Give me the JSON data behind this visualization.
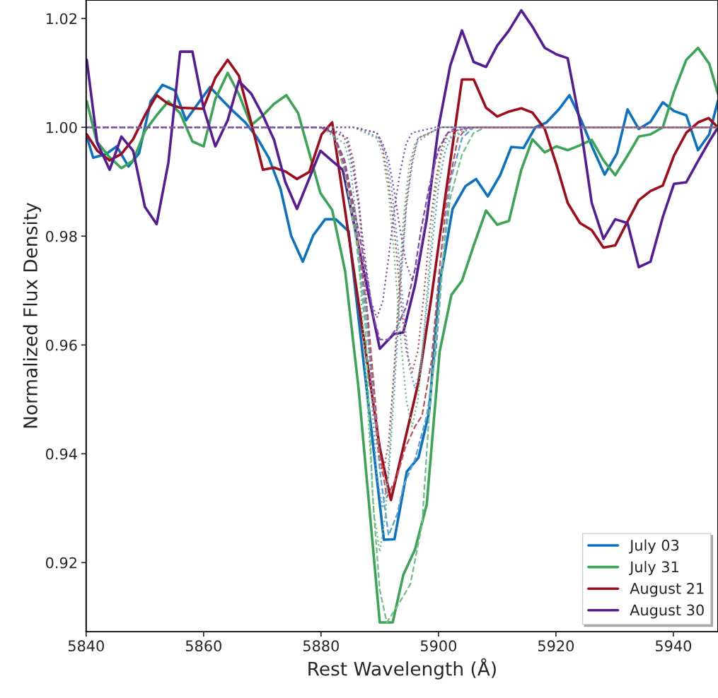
{
  "chart_data": {
    "type": "line",
    "xlabel": "Rest Wavelength (Å)",
    "ylabel": "Normalized Flux Density",
    "xlim": [
      5840,
      5947.6
    ],
    "ylim": [
      0.9073,
      1.0234
    ],
    "xticks": [
      5840,
      5860,
      5880,
      5900,
      5920,
      5940
    ],
    "yticks": [
      {
        "value": 0.92,
        "label": "0.92"
      },
      {
        "value": 0.94,
        "label": "0.94"
      },
      {
        "value": 0.96,
        "label": "0.96"
      },
      {
        "value": 0.98,
        "label": "0.98"
      },
      {
        "value": 1.0,
        "label": "1.00"
      },
      {
        "value": 1.02,
        "label": "1.02"
      }
    ],
    "grid": false,
    "legend": "bottom right",
    "series": [
      {
        "name": "July 03",
        "color": "#0a72c0",
        "line_style": "solid",
        "x": [
          5840.1,
          5841.2,
          5843.4,
          5845.2,
          5847.2,
          5849.0,
          5851.0,
          5853.0,
          5855.1,
          5857.0,
          5859.0,
          5861.1,
          5863.0,
          5865.1,
          5867.1,
          5869.0,
          5871.1,
          5873.1,
          5874.9,
          5876.9,
          5878.7,
          5880.7,
          5882.5,
          5884.7,
          5890.7,
          5892.5,
          5894.6,
          5896.6,
          5898.4,
          5900.2,
          5902.4,
          5904.6,
          5906.4,
          5908.4,
          5910.5,
          5912.4,
          5914.5,
          5916.5,
          5918.4,
          5920.5,
          5922.3,
          5924.3,
          5926.3,
          5928.3,
          5930.4,
          5932.2,
          5934.1,
          5936.1,
          5938.2,
          5940.1,
          5942.2,
          5944.2,
          5946.1,
          5947.6
        ],
        "values": [
          0.9983,
          0.9944,
          0.9951,
          0.9965,
          0.9928,
          0.9952,
          1.0048,
          1.0078,
          1.0068,
          1.0013,
          1.0043,
          1.0074,
          1.0052,
          1.0029,
          1.0009,
          0.9983,
          0.9944,
          0.9887,
          0.9801,
          0.9753,
          0.9802,
          0.9831,
          0.9831,
          0.9809,
          0.9242,
          0.9243,
          0.9367,
          0.9393,
          0.9476,
          0.9714,
          0.985,
          0.9892,
          0.9905,
          0.9873,
          0.9912,
          0.9964,
          0.9962,
          1.0,
          1.0009,
          1.0033,
          1.0059,
          1.0013,
          0.9961,
          0.9913,
          0.9952,
          1.0033,
          0.9997,
          1.001,
          1.0046,
          1.003,
          1.0022,
          0.9958,
          0.9987,
          1.0049
        ]
      },
      {
        "name": "July 31",
        "color": "#3aa655",
        "line_style": "solid",
        "x": [
          5840.1,
          5841.8,
          5844.0,
          5846.0,
          5848.0,
          5850.0,
          5852.0,
          5854.0,
          5856.0,
          5858.1,
          5860.0,
          5862.0,
          5864.1,
          5866.0,
          5868.1,
          5870.1,
          5872.0,
          5874.1,
          5876.1,
          5879.9,
          5881.9,
          5884.1,
          5886.4,
          5890.0,
          5892.2,
          5894.0,
          5896.0,
          5898.0,
          5900.2,
          5902.2,
          5904.0,
          5906.0,
          5908.1,
          5910.0,
          5912.0,
          5914.1,
          5916.0,
          5918.1,
          5920.1,
          5922.0,
          5924.1,
          5926.1,
          5928.1,
          5930.1,
          5932.2,
          5934.1,
          5936.1,
          5938.2,
          5940.1,
          5942.2,
          5944.2,
          5946.1,
          5947.6
        ],
        "values": [
          1.0048,
          0.9974,
          0.9945,
          0.9925,
          0.9939,
          0.9993,
          1.0022,
          1.0048,
          1.0026,
          0.9974,
          0.9965,
          1.0052,
          1.01,
          1.0061,
          1.0004,
          1.0022,
          1.0043,
          1.0059,
          1.0026,
          0.9879,
          0.9848,
          0.9736,
          0.9519,
          0.909,
          0.909,
          0.9177,
          0.9224,
          0.9307,
          0.9588,
          0.9692,
          0.9718,
          0.9783,
          0.9847,
          0.9821,
          0.9828,
          0.9922,
          0.9978,
          0.9954,
          0.9965,
          0.9958,
          0.9967,
          0.9977,
          0.9939,
          0.9912,
          0.9948,
          0.9983,
          0.9987,
          1.0,
          1.0065,
          1.0124,
          1.0146,
          1.0117,
          1.0061
        ]
      },
      {
        "name": "August 21",
        "color": "#a00c1c",
        "line_style": "solid",
        "x": [
          5840.1,
          5841.9,
          5844.0,
          5846.0,
          5848.0,
          5850.0,
          5852.0,
          5854.0,
          5856.0,
          5858.1,
          5859.9,
          5862.0,
          5864.1,
          5866.0,
          5868.1,
          5870.1,
          5872.0,
          5873.9,
          5875.9,
          5878.0,
          5880.1,
          5881.9,
          5890.0,
          5891.9,
          5896.6,
          5898.8,
          5901.3,
          5904.0,
          5906.0,
          5908.1,
          5910.0,
          5912.0,
          5914.1,
          5916.0,
          5918.1,
          5920.1,
          5922.0,
          5924.1,
          5926.1,
          5928.1,
          5930.1,
          5932.2,
          5934.1,
          5936.1,
          5938.2,
          5940.1,
          5942.2,
          5944.2,
          5946.0,
          5947.3
        ],
        "values": [
          0.9987,
          0.9957,
          0.9939,
          0.9951,
          0.9978,
          1.0022,
          1.0059,
          1.0043,
          1.0036,
          1.0035,
          1.0034,
          1.0091,
          1.0124,
          1.0095,
          1.0009,
          0.9922,
          0.9926,
          0.9919,
          0.9905,
          0.9918,
          0.9987,
          1.0009,
          0.9411,
          0.9315,
          0.9532,
          0.9688,
          0.9883,
          1.0088,
          1.0088,
          1.0036,
          1.002,
          1.0029,
          1.0035,
          1.0027,
          0.9997,
          0.9931,
          0.9861,
          0.9824,
          0.9811,
          0.9779,
          0.9783,
          0.9827,
          0.9866,
          0.9883,
          0.9893,
          0.9948,
          0.999,
          1.0009,
          1.0017,
          1.0003
        ]
      },
      {
        "name": "August 30",
        "color": "#561c98",
        "line_style": "solid",
        "x": [
          5840.1,
          5841.9,
          5844.0,
          5846.0,
          5848.0,
          5850.0,
          5852.0,
          5854.0,
          5856.0,
          5858.1,
          5860.0,
          5862.0,
          5864.1,
          5866.0,
          5868.1,
          5870.1,
          5872.0,
          5873.9,
          5875.9,
          5879.9,
          5881.9,
          5883.7,
          5890.0,
          5892.4,
          5894.0,
          5896.0,
          5898.0,
          5900.0,
          5902.0,
          5904.0,
          5906.0,
          5908.1,
          5910.0,
          5912.0,
          5914.1,
          5916.0,
          5918.1,
          5920.1,
          5922.0,
          5924.1,
          5926.1,
          5928.1,
          5930.1,
          5932.2,
          5934.1,
          5936.1,
          5938.2,
          5940.1,
          5942.2,
          5944.2,
          5946.1,
          5947.6
        ],
        "values": [
          1.0124,
          0.9971,
          0.9922,
          0.9983,
          0.9957,
          0.9854,
          0.9822,
          0.9935,
          1.0139,
          1.0139,
          1.0035,
          0.9965,
          1.0013,
          1.0085,
          1.0062,
          1.0022,
          0.9977,
          0.99,
          0.985,
          0.9957,
          0.9938,
          0.9922,
          0.9593,
          0.962,
          0.9623,
          0.971,
          0.9831,
          1.0,
          1.0113,
          1.0178,
          1.012,
          1.0111,
          1.015,
          1.0178,
          1.0215,
          1.0185,
          1.0146,
          1.0134,
          1.0127,
          1.0009,
          0.9861,
          0.9795,
          0.9831,
          0.9824,
          0.9743,
          0.9753,
          0.9835,
          0.9896,
          0.9899,
          0.9938,
          0.9974,
          1.0
        ]
      },
      {
        "color": "#5a9fd6",
        "line_style": "dashed",
        "x": [
          5840,
          5880,
          5882,
          5884,
          5886,
          5888,
          5890,
          5891.5,
          5893,
          5894,
          5896,
          5898,
          5899.6,
          5901,
          5902,
          5904,
          5906,
          5947.6
        ],
        "values": [
          1.0,
          1.0,
          0.999,
          0.993,
          0.981,
          0.962,
          0.937,
          0.925,
          0.929,
          0.934,
          0.939,
          0.947,
          0.959,
          0.979,
          0.99,
          0.998,
          1.0,
          1.0
        ]
      },
      {
        "color": "#6cc080",
        "line_style": "dashed",
        "x": [
          5840,
          5880,
          5882,
          5884,
          5886,
          5887.6,
          5888.8,
          5890,
          5891.2,
          5893,
          5895.2,
          5897.2,
          5898.4,
          5899.6,
          5900.8,
          5902,
          5904,
          5906,
          5908,
          5947.6
        ],
        "values": [
          1.0,
          1.0,
          0.999,
          0.992,
          0.979,
          0.963,
          0.932,
          0.915,
          0.909,
          0.912,
          0.916,
          0.927,
          0.947,
          0.962,
          0.976,
          0.987,
          0.995,
          0.999,
          1.0,
          1.0
        ]
      },
      {
        "color": "#c0505c",
        "line_style": "dashed",
        "x": [
          5840,
          5880,
          5882,
          5884,
          5886,
          5888,
          5890,
          5891.2,
          5893,
          5894.3,
          5896,
          5897.2,
          5898.8,
          5900,
          5901.5,
          5903.3,
          5905,
          5947.6
        ],
        "values": [
          1.0,
          1.0,
          0.999,
          0.993,
          0.982,
          0.965,
          0.94,
          0.932,
          0.936,
          0.941,
          0.945,
          0.947,
          0.957,
          0.972,
          0.988,
          0.998,
          1.0,
          1.0
        ]
      },
      {
        "color": "#7d4fb3",
        "line_style": "dashed",
        "x": [
          5840,
          5880,
          5882,
          5884,
          5885.5,
          5887.6,
          5889,
          5890,
          5891.5,
          5892.8,
          5894.5,
          5896,
          5897,
          5898.4,
          5900,
          5901.6,
          5903,
          5947.6
        ],
        "values": [
          1.0,
          1.0,
          0.999,
          0.994,
          0.986,
          0.974,
          0.965,
          0.961,
          0.961,
          0.963,
          0.967,
          0.974,
          0.981,
          0.989,
          0.996,
          0.999,
          1.0,
          1.0
        ]
      },
      {
        "color": "#5a9fd6",
        "line_style": "dotted",
        "x": [
          5840,
          5880.5,
          5884.5,
          5885.5,
          5886.5,
          5887.5,
          5888.5,
          5889.5,
          5890.5,
          5891.5,
          5892.5,
          5893.5,
          5894.5,
          5895.5,
          5896.5,
          5900.5,
          5947.6
        ],
        "values": [
          1.0,
          1.0,
          0.998,
          0.993,
          0.985,
          0.97,
          0.952,
          0.936,
          0.93,
          0.936,
          0.952,
          0.97,
          0.985,
          0.993,
          0.998,
          1.0,
          1.0
        ]
      },
      {
        "color": "#5a9fd6",
        "line_style": "dotted",
        "x": [
          5840,
          5886,
          5890,
          5891,
          5892,
          5893,
          5894,
          5895,
          5896,
          5897,
          5898,
          5899,
          5900,
          5901,
          5902,
          5906,
          5947.6
        ],
        "values": [
          1.0,
          1.0,
          0.998,
          0.995,
          0.989,
          0.979,
          0.967,
          0.956,
          0.952,
          0.956,
          0.967,
          0.979,
          0.989,
          0.995,
          0.998,
          1.0,
          1.0
        ]
      },
      {
        "color": "#6cc080",
        "line_style": "dotted",
        "x": [
          5840,
          5880,
          5884,
          5885,
          5886,
          5887,
          5888,
          5889,
          5890,
          5891,
          5892,
          5893,
          5894,
          5895,
          5896,
          5900,
          5947.6
        ],
        "values": [
          1.0,
          1.0,
          0.997,
          0.993,
          0.983,
          0.966,
          0.947,
          0.929,
          0.922,
          0.929,
          0.947,
          0.966,
          0.983,
          0.993,
          0.997,
          1.0,
          1.0
        ]
      },
      {
        "color": "#6cc080",
        "line_style": "dotted",
        "x": [
          5840,
          5885.5,
          5889.5,
          5890.5,
          5891.5,
          5892.5,
          5893.5,
          5894.5,
          5895.5,
          5896.5,
          5897.5,
          5898.5,
          5899.5,
          5900.5,
          5901.5,
          5905.5,
          5947.6
        ],
        "values": [
          1.0,
          1.0,
          0.998,
          0.995,
          0.988,
          0.976,
          0.962,
          0.95,
          0.945,
          0.95,
          0.962,
          0.976,
          0.988,
          0.995,
          0.998,
          1.0,
          1.0
        ]
      },
      {
        "color": "#c0505c",
        "line_style": "dotted",
        "x": [
          5840,
          5880.5,
          5884.5,
          5885.5,
          5886.5,
          5887.5,
          5888.5,
          5889.5,
          5890.5,
          5891.5,
          5892.5,
          5893.5,
          5894.5,
          5895.5,
          5896.5,
          5900.5,
          5947.6
        ],
        "values": [
          1.0,
          1.0,
          0.998,
          0.994,
          0.986,
          0.972,
          0.956,
          0.942,
          0.936,
          0.942,
          0.956,
          0.972,
          0.986,
          0.994,
          0.998,
          1.0,
          1.0
        ]
      },
      {
        "color": "#c0505c",
        "line_style": "dotted",
        "x": [
          5840,
          5885.5,
          5889.5,
          5890.5,
          5891.5,
          5892.5,
          5893.5,
          5894.5,
          5895.5,
          5896.5,
          5897.5,
          5898.5,
          5899.5,
          5900.5,
          5901.5,
          5905.5,
          5947.6
        ],
        "values": [
          1.0,
          1.0,
          0.999,
          0.996,
          0.99,
          0.981,
          0.969,
          0.959,
          0.955,
          0.959,
          0.969,
          0.981,
          0.99,
          0.996,
          0.999,
          1.0,
          1.0
        ]
      },
      {
        "color": "#7d4fb3",
        "line_style": "dotted",
        "x": [
          5840,
          5879.5,
          5883.5,
          5884.5,
          5885.5,
          5886.5,
          5887.5,
          5888.5,
          5889.5,
          5890.5,
          5891.5,
          5892.5,
          5893.5,
          5894.5,
          5895.5,
          5899.5,
          5947.6
        ],
        "values": [
          1.0,
          1.0,
          0.999,
          0.997,
          0.992,
          0.985,
          0.976,
          0.968,
          0.965,
          0.968,
          0.976,
          0.985,
          0.992,
          0.997,
          0.999,
          1.0,
          1.0
        ]
      },
      {
        "color": "#7d4fb3",
        "line_style": "dotted",
        "x": [
          5840,
          5885.5,
          5889.5,
          5890.5,
          5891.5,
          5892.5,
          5893.5,
          5894.5,
          5895.5,
          5896.5,
          5897.5,
          5898.5,
          5899.5,
          5900.5,
          5901.5,
          5905.5,
          5947.6
        ],
        "values": [
          1.0,
          1.0,
          0.999,
          0.997,
          0.994,
          0.988,
          0.981,
          0.975,
          0.972,
          0.975,
          0.981,
          0.988,
          0.994,
          0.997,
          0.999,
          1.0,
          1.0
        ]
      }
    ]
  }
}
